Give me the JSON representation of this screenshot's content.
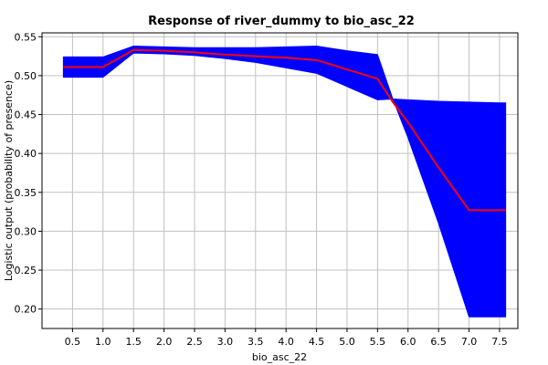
{
  "chart_data": {
    "type": "line",
    "title": "Response of river_dummy to bio_asc_22",
    "xlabel": "bio_asc_22",
    "ylabel": "Logistic output (probability of presence)",
    "xlim": [
      0.0,
      7.8
    ],
    "ylim": [
      0.175,
      0.555
    ],
    "x_ticks": [
      0.5,
      1.0,
      1.5,
      2.0,
      2.5,
      3.0,
      3.5,
      4.0,
      4.5,
      5.0,
      5.5,
      6.0,
      6.5,
      7.0,
      7.5
    ],
    "x_tick_labels": [
      "0.5",
      "1.0",
      "1.5",
      "2.0",
      "2.5",
      "3.0",
      "3.5",
      "4.0",
      "4.5",
      "5.0",
      "5.5",
      "6.0",
      "6.5",
      "7.0",
      "7.5"
    ],
    "y_ticks": [
      0.2,
      0.25,
      0.3,
      0.35,
      0.4,
      0.45,
      0.5,
      0.55
    ],
    "y_tick_labels": [
      "0.20",
      "0.25",
      "0.30",
      "0.35",
      "0.40",
      "0.45",
      "0.50",
      "0.55"
    ],
    "grid": true,
    "series": [
      {
        "kind": "line",
        "color": "#ff0000",
        "x": [
          0.35,
          0.5,
          1.0,
          1.5,
          2.0,
          2.5,
          3.0,
          3.5,
          4.0,
          4.5,
          5.0,
          5.5,
          5.75,
          6.0,
          6.5,
          7.0,
          7.5,
          7.6
        ],
        "y": [
          0.511,
          0.511,
          0.511,
          0.533,
          0.532,
          0.53,
          0.527,
          0.525,
          0.523,
          0.52,
          0.508,
          0.496,
          0.466,
          0.44,
          0.382,
          0.327,
          0.327,
          0.327
        ]
      },
      {
        "kind": "band",
        "color": "#0000ff",
        "x": [
          0.35,
          0.5,
          1.0,
          1.5,
          2.0,
          2.5,
          3.0,
          3.5,
          4.0,
          4.5,
          5.0,
          5.5,
          5.75,
          6.0,
          6.5,
          7.0,
          7.5,
          7.6
        ],
        "upper": [
          0.524,
          0.524,
          0.524,
          0.538,
          0.537,
          0.536,
          0.536,
          0.536,
          0.537,
          0.538,
          0.532,
          0.527,
          0.47,
          0.469,
          0.467,
          0.466,
          0.465,
          0.465
        ],
        "lower": [
          0.498,
          0.498,
          0.498,
          0.529,
          0.528,
          0.526,
          0.522,
          0.517,
          0.51,
          0.503,
          0.486,
          0.469,
          0.47,
          0.42,
          0.31,
          0.19,
          0.19,
          0.19
        ]
      }
    ]
  }
}
